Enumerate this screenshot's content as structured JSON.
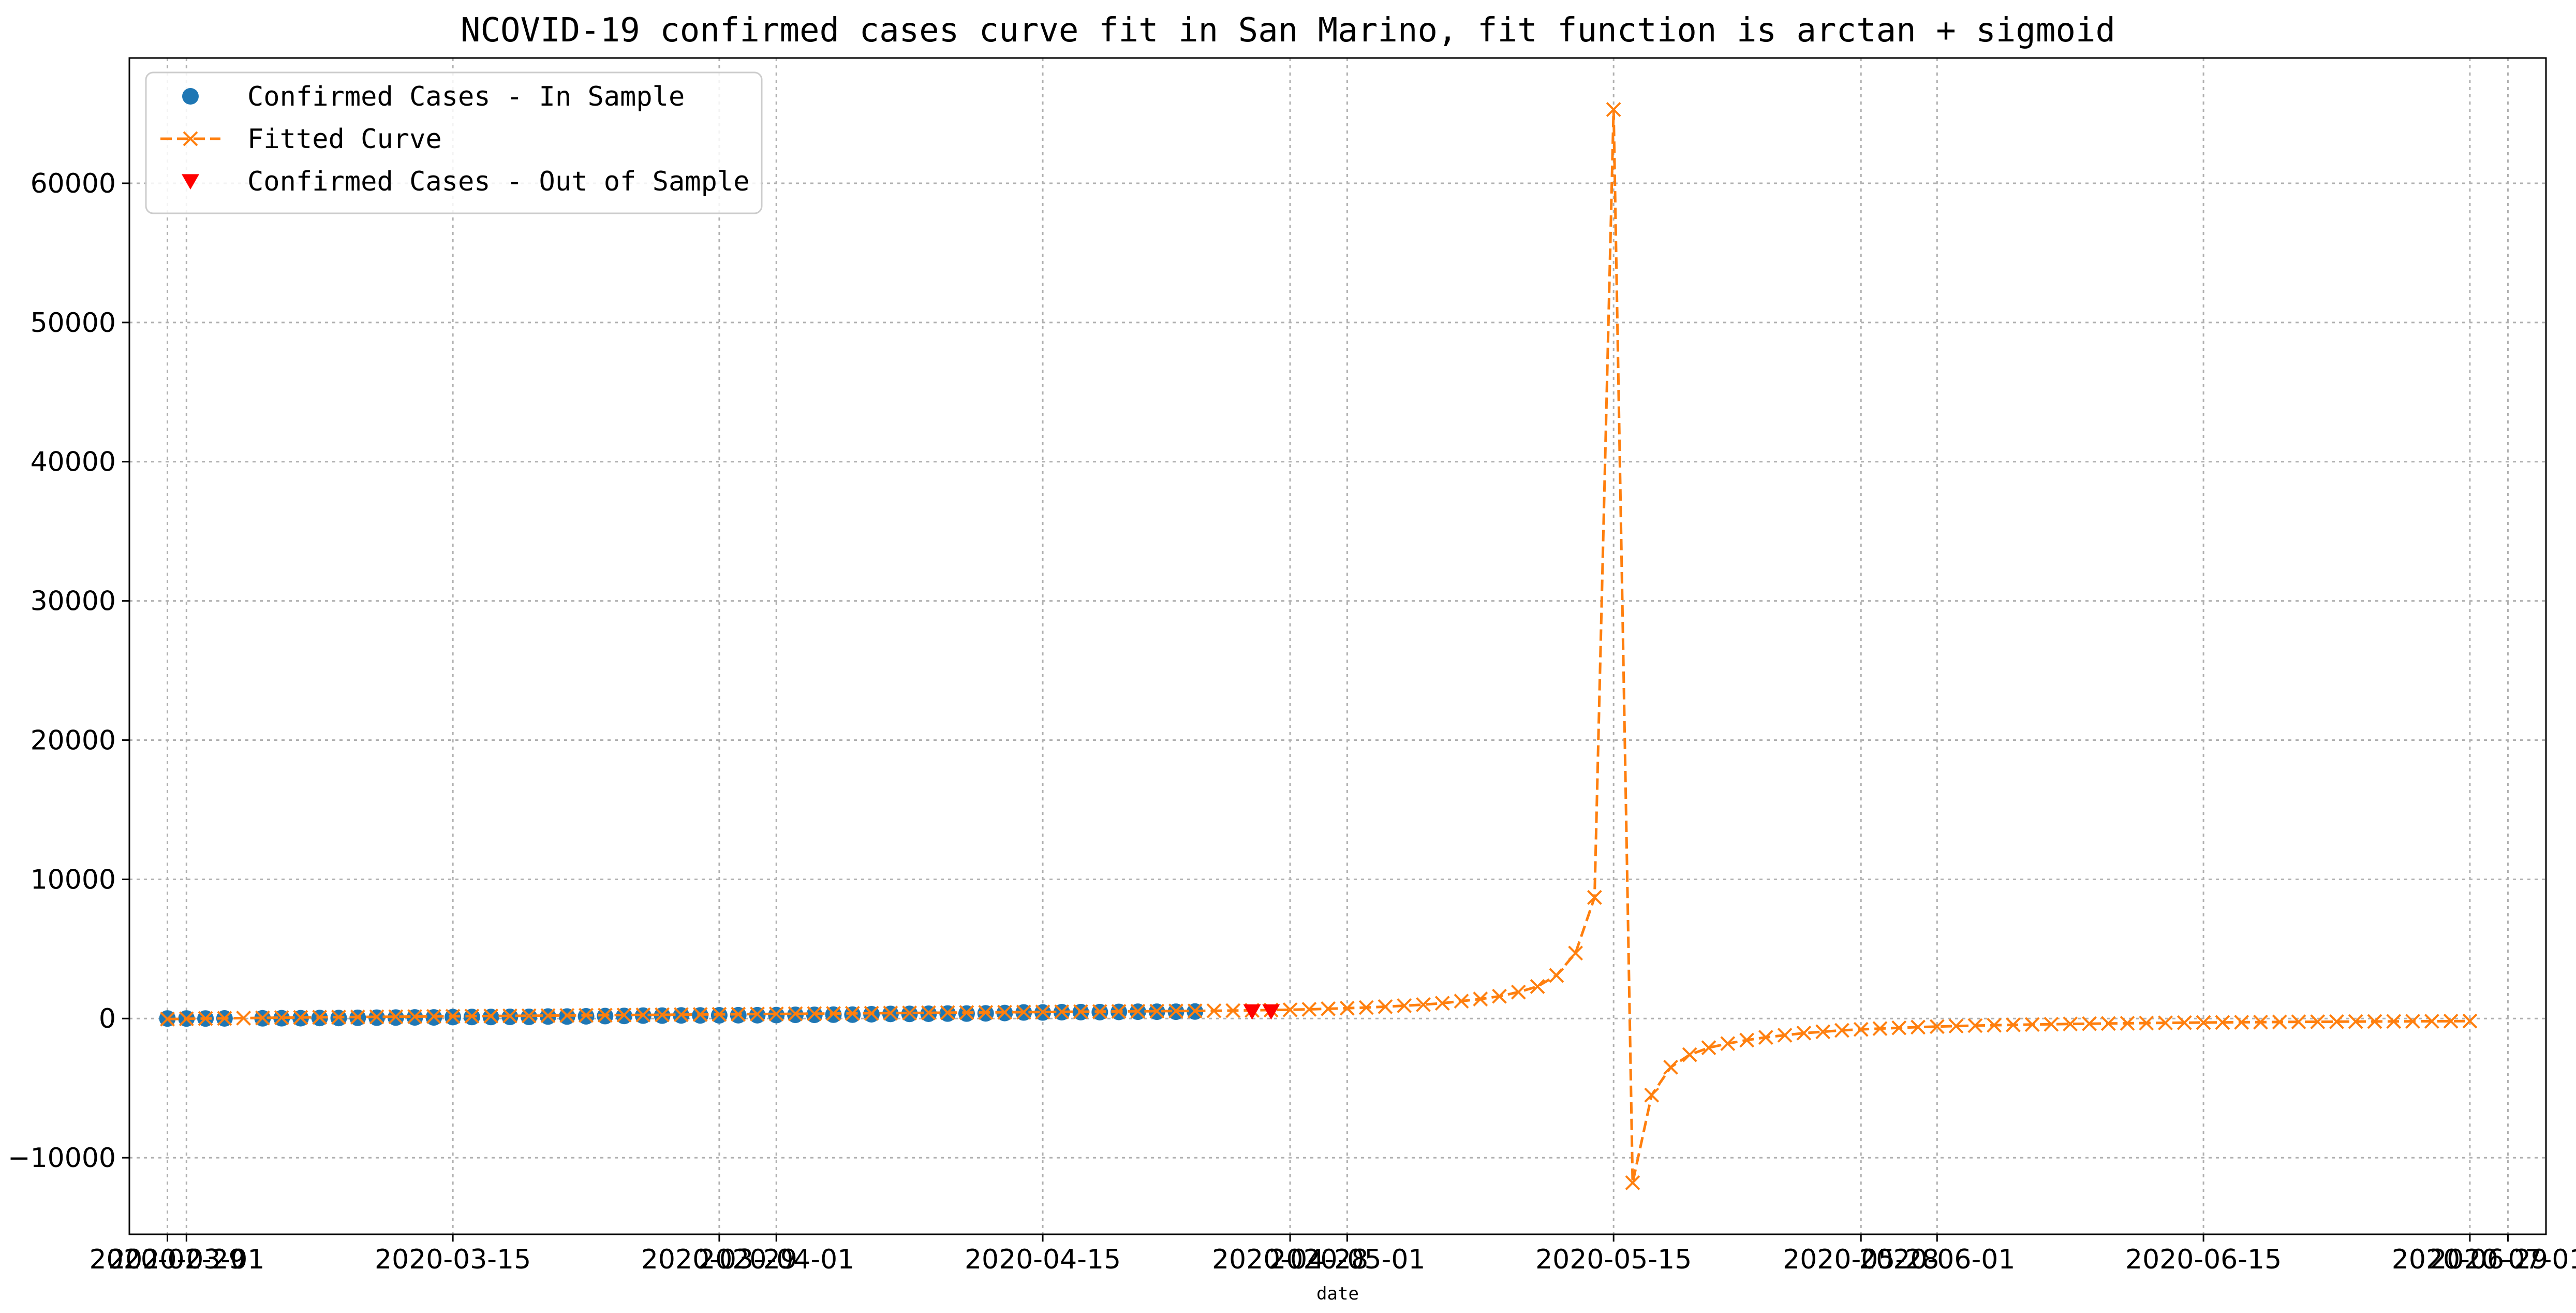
{
  "chart_data": {
    "type": "line",
    "title": "NCOVID-19 confirmed cases curve fit in San Marino, fit function is arctan + sigmoid",
    "xlabel": "date",
    "ylabel": "",
    "grid": true,
    "legend_position": "top-left",
    "xlim": [
      "2020-02-27",
      "2020-07-03"
    ],
    "ylim": [
      -15500,
      69000
    ],
    "x_ticks": [
      {
        "value": "2020-02-29",
        "label": "2020-02-29"
      },
      {
        "value": "2020-03-01",
        "label": "2020-03-01"
      },
      {
        "value": "2020-03-15",
        "label": "2020-03-15"
      },
      {
        "value": "2020-03-29",
        "label": "2020-03-29"
      },
      {
        "value": "2020-04-01",
        "label": "2020-04-01"
      },
      {
        "value": "2020-04-15",
        "label": "2020-04-15"
      },
      {
        "value": "2020-04-28",
        "label": "2020-04-28"
      },
      {
        "value": "2020-05-01",
        "label": "2020-05-01"
      },
      {
        "value": "2020-05-15",
        "label": "2020-05-15"
      },
      {
        "value": "2020-05-28",
        "label": "2020-05-28"
      },
      {
        "value": "2020-06-01",
        "label": "2020-06-01"
      },
      {
        "value": "2020-06-15",
        "label": "2020-06-15"
      },
      {
        "value": "2020-06-29",
        "label": "2020-06-29"
      },
      {
        "value": "2020-07-01",
        "label": "2020-07-01"
      }
    ],
    "y_ticks": [
      -10000,
      0,
      10000,
      20000,
      30000,
      40000,
      50000,
      60000
    ],
    "series": [
      {
        "name": "Confirmed Cases - In Sample",
        "marker": "circle",
        "color": "#1f77b4",
        "x": [
          "2020-02-29",
          "2020-03-01",
          "2020-03-02",
          "2020-03-03",
          "2020-03-05",
          "2020-03-06",
          "2020-03-07",
          "2020-03-08",
          "2020-03-09",
          "2020-03-10",
          "2020-03-11",
          "2020-03-12",
          "2020-03-13",
          "2020-03-14",
          "2020-03-15",
          "2020-03-16",
          "2020-03-17",
          "2020-03-18",
          "2020-03-19",
          "2020-03-20",
          "2020-03-21",
          "2020-03-22",
          "2020-03-23",
          "2020-03-24",
          "2020-03-25",
          "2020-03-26",
          "2020-03-27",
          "2020-03-28",
          "2020-03-29",
          "2020-03-30",
          "2020-03-31",
          "2020-04-01",
          "2020-04-02",
          "2020-04-03",
          "2020-04-04",
          "2020-04-05",
          "2020-04-06",
          "2020-04-07",
          "2020-04-08",
          "2020-04-09",
          "2020-04-10",
          "2020-04-11",
          "2020-04-12",
          "2020-04-13",
          "2020-04-14",
          "2020-04-15",
          "2020-04-16",
          "2020-04-17",
          "2020-04-18",
          "2020-04-19",
          "2020-04-20",
          "2020-04-21",
          "2020-04-22",
          "2020-04-23"
        ],
        "values": [
          1,
          1,
          1,
          8,
          16,
          21,
          23,
          36,
          36,
          51,
          62,
          69,
          80,
          80,
          101,
          109,
          109,
          119,
          119,
          144,
          144,
          160,
          175,
          187,
          208,
          208,
          223,
          224,
          230,
          236,
          236,
          245,
          266,
          266,
          277,
          279,
          308,
          331,
          333,
          344,
          356,
          356,
          371,
          394,
          435,
          435,
          455,
          461,
          461,
          476,
          488,
          488,
          490,
          501
        ]
      },
      {
        "name": "Fitted Curve",
        "marker": "x",
        "color": "#ff7f0e",
        "line_style": "dashed",
        "x_start": "2020-02-29",
        "x_end": "2020-06-29",
        "values": [
          -40,
          -20,
          0,
          15,
          30,
          45,
          60,
          75,
          90,
          100,
          110,
          120,
          130,
          140,
          150,
          160,
          170,
          180,
          190,
          200,
          210,
          220,
          230,
          240,
          250,
          260,
          270,
          280,
          290,
          300,
          310,
          320,
          330,
          340,
          350,
          360,
          370,
          380,
          390,
          400,
          410,
          420,
          430,
          440,
          450,
          460,
          470,
          480,
          490,
          500,
          510,
          520,
          530,
          540,
          550,
          560,
          570,
          590,
          610,
          630,
          660,
          700,
          740,
          790,
          850,
          920,
          1000,
          1100,
          1250,
          1400,
          1600,
          1900,
          2300,
          3100,
          4700,
          8700,
          65300,
          -11800,
          -5500,
          -3500,
          -2600,
          -2100,
          -1800,
          -1550,
          -1350,
          -1200,
          -1050,
          -950,
          -850,
          -780,
          -720,
          -670,
          -620,
          -580,
          -540,
          -510,
          -480,
          -455,
          -430,
          -410,
          -390,
          -370,
          -355,
          -340,
          -325,
          -312,
          -300,
          -288,
          -277,
          -267,
          -258,
          -249,
          -241,
          -233,
          -226,
          -219,
          -212,
          -206,
          -200,
          -195,
          -190,
          -185
        ]
      },
      {
        "name": "Confirmed Cases - Out of Sample",
        "marker": "triangle-down",
        "color": "#ff0000",
        "x": [
          "2020-04-26",
          "2020-04-27"
        ],
        "values": [
          513,
          513
        ]
      }
    ]
  }
}
